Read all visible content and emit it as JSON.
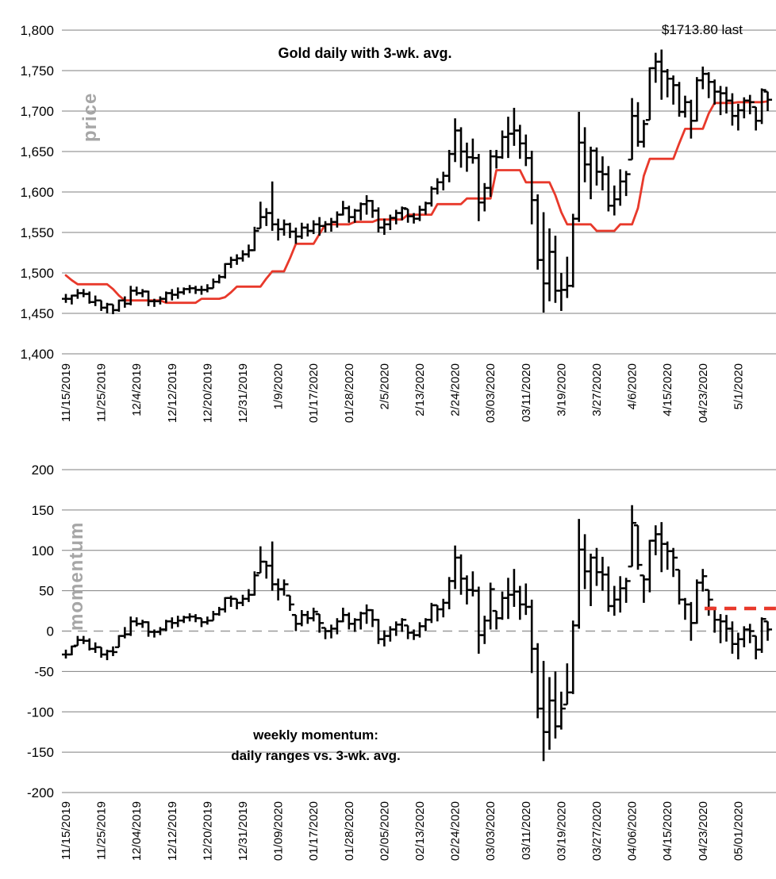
{
  "colors": {
    "background": "#ffffff",
    "grid": "#7f7f7f",
    "bars": "#000000",
    "avg_line": "#e8392b",
    "zero_dash": "#999999",
    "signal_dash": "#e8392b",
    "axis_text": "#000000",
    "side_label_text": "#a6a6a6"
  },
  "price_chart": {
    "title": "Gold daily with 3-wk. avg.",
    "side_label": "price",
    "last_label": "$1713.80 last",
    "last_value": 1713.8,
    "y_ticks": [
      "1,800",
      "1,750",
      "1,700",
      "1,650",
      "1,600",
      "1,550",
      "1,500",
      "1,450",
      "1,400"
    ],
    "x_labels": [
      "11/15/2019",
      "11/25/2019",
      "12/4/2019",
      "12/12/2019",
      "12/20/2019",
      "12/31/2019",
      "1/9/2020",
      "01/17/2020",
      "01/28/2020",
      "2/5/2020",
      "2/13/2020",
      "2/24/2020",
      "03/03/2020",
      "03/11/2020",
      "3/19/2020",
      "3/27/2020",
      "4/6/2020",
      "4/15/2020",
      "04/23/2020",
      "5/1/2020"
    ]
  },
  "momentum_chart": {
    "title_line1": "weekly momentum:",
    "title_line2": "daily ranges vs. 3-wk. avg.",
    "side_label": "momentum",
    "y_ticks": [
      "200",
      "150",
      "100",
      "50",
      "0",
      "-50",
      "-100",
      "-150",
      "-200"
    ],
    "x_labels": [
      "11/15/2019",
      "11/25/2019",
      "12/04/2019",
      "12/12/2019",
      "12/20/2019",
      "12/31/2019",
      "01/09/2020",
      "01/17/2020",
      "01/28/2020",
      "02/05/2020",
      "02/13/2020",
      "02/24/2020",
      "03/03/2020",
      "03/11/2020",
      "03/19/2020",
      "03/27/2020",
      "04/06/2020",
      "04/15/2020",
      "04/23/2020",
      "05/01/2020"
    ]
  },
  "chart_data": [
    {
      "type": "bar",
      "subtype": "daily-high-low-close-bars",
      "name": "gold-daily-price",
      "title": "Gold daily with 3-wk. avg.",
      "ylabel": "price",
      "ylim": [
        1400,
        1800
      ],
      "y_grid_step": 50,
      "grid": true,
      "x_label_every_n_days": 6,
      "annotation": "$1713.80 last",
      "days_hlc": [
        [
          1474,
          1463,
          1468
        ],
        [
          1473,
          1461,
          1472
        ],
        [
          1480,
          1468,
          1475
        ],
        [
          1480,
          1470,
          1474
        ],
        [
          1477,
          1462,
          1464
        ],
        [
          1472,
          1459,
          1466
        ],
        [
          1466,
          1453,
          1457
        ],
        [
          1463,
          1450,
          1461
        ],
        [
          1461,
          1449,
          1454
        ],
        [
          1467,
          1452,
          1466
        ],
        [
          1471,
          1457,
          1462
        ],
        [
          1484,
          1460,
          1478
        ],
        [
          1483,
          1472,
          1475
        ],
        [
          1480,
          1470,
          1477
        ],
        [
          1478,
          1459,
          1465
        ],
        [
          1468,
          1458,
          1465
        ],
        [
          1471,
          1461,
          1468
        ],
        [
          1477,
          1463,
          1475
        ],
        [
          1480,
          1466,
          1473
        ],
        [
          1482,
          1468,
          1476
        ],
        [
          1482,
          1473,
          1480
        ],
        [
          1485,
          1475,
          1481
        ],
        [
          1484,
          1474,
          1479
        ],
        [
          1484,
          1473,
          1479
        ],
        [
          1486,
          1476,
          1481
        ],
        [
          1493,
          1481,
          1489
        ],
        [
          1498,
          1487,
          1495
        ],
        [
          1512,
          1493,
          1511
        ],
        [
          1520,
          1506,
          1516
        ],
        [
          1523,
          1510,
          1518
        ],
        [
          1528,
          1514,
          1523
        ],
        [
          1535,
          1519,
          1528
        ],
        [
          1557,
          1527,
          1552
        ],
        [
          1588,
          1555,
          1569
        ],
        [
          1580,
          1558,
          1574
        ],
        [
          1613,
          1552,
          1560
        ],
        [
          1567,
          1540,
          1554
        ],
        [
          1566,
          1546,
          1560
        ],
        [
          1562,
          1543,
          1551
        ],
        [
          1556,
          1536,
          1545
        ],
        [
          1562,
          1542,
          1556
        ],
        [
          1561,
          1545,
          1552
        ],
        [
          1565,
          1548,
          1560
        ],
        [
          1569,
          1546,
          1558
        ],
        [
          1564,
          1550,
          1560
        ],
        [
          1568,
          1551,
          1563
        ],
        [
          1576,
          1556,
          1572
        ],
        [
          1589,
          1571,
          1580
        ],
        [
          1583,
          1562,
          1569
        ],
        [
          1579,
          1562,
          1577
        ],
        [
          1587,
          1565,
          1585
        ],
        [
          1596,
          1572,
          1589
        ],
        [
          1590,
          1568,
          1577
        ],
        [
          1581,
          1550,
          1556
        ],
        [
          1567,
          1547,
          1560
        ],
        [
          1572,
          1553,
          1568
        ],
        [
          1578,
          1560,
          1574
        ],
        [
          1582,
          1565,
          1580
        ],
        [
          1579,
          1562,
          1570
        ],
        [
          1574,
          1561,
          1567
        ],
        [
          1583,
          1564,
          1578
        ],
        [
          1588,
          1572,
          1586
        ],
        [
          1607,
          1582,
          1604
        ],
        [
          1617,
          1597,
          1612
        ],
        [
          1625,
          1602,
          1620
        ],
        [
          1652,
          1612,
          1647
        ],
        [
          1691,
          1637,
          1676
        ],
        [
          1680,
          1630,
          1650
        ],
        [
          1661,
          1625,
          1643
        ],
        [
          1666,
          1635,
          1642
        ],
        [
          1647,
          1564,
          1587
        ],
        [
          1611,
          1576,
          1605
        ],
        [
          1652,
          1594,
          1644
        ],
        [
          1652,
          1629,
          1643
        ],
        [
          1676,
          1641,
          1668
        ],
        [
          1693,
          1642,
          1672
        ],
        [
          1704,
          1657,
          1676
        ],
        [
          1683,
          1641,
          1660
        ],
        [
          1671,
          1632,
          1642
        ],
        [
          1651,
          1560,
          1590
        ],
        [
          1597,
          1504,
          1516
        ],
        [
          1575,
          1451,
          1487
        ],
        [
          1555,
          1465,
          1526
        ],
        [
          1546,
          1463,
          1478
        ],
        [
          1500,
          1453,
          1479
        ],
        [
          1520,
          1469,
          1484
        ],
        [
          1573,
          1482,
          1567
        ],
        [
          1699,
          1563,
          1661
        ],
        [
          1680,
          1612,
          1634
        ],
        [
          1656,
          1591,
          1651
        ],
        [
          1655,
          1608,
          1625
        ],
        [
          1644,
          1602,
          1622
        ],
        [
          1632,
          1576,
          1583
        ],
        [
          1608,
          1571,
          1591
        ],
        [
          1628,
          1583,
          1613
        ],
        [
          1626,
          1595,
          1622
        ],
        [
          1716,
          1640,
          1694
        ],
        [
          1711,
          1656,
          1662
        ],
        [
          1689,
          1655,
          1684
        ],
        [
          1754,
          1689,
          1753
        ],
        [
          1772,
          1735,
          1761
        ],
        [
          1776,
          1714,
          1749
        ],
        [
          1752,
          1717,
          1740
        ],
        [
          1744,
          1708,
          1732
        ],
        [
          1736,
          1693,
          1699
        ],
        [
          1719,
          1692,
          1711
        ],
        [
          1714,
          1666,
          1688
        ],
        [
          1742,
          1687,
          1738
        ],
        [
          1755,
          1727,
          1746
        ],
        [
          1748,
          1716,
          1736
        ],
        [
          1739,
          1708,
          1724
        ],
        [
          1731,
          1695,
          1722
        ],
        [
          1730,
          1697,
          1713
        ],
        [
          1722,
          1682,
          1694
        ],
        [
          1709,
          1676,
          1701
        ],
        [
          1717,
          1691,
          1713
        ],
        [
          1720,
          1696,
          1711
        ],
        [
          1705,
          1676,
          1688
        ],
        [
          1728,
          1684,
          1726
        ],
        [
          1724,
          1700,
          1714
        ]
      ],
      "avg_3wk": [
        1497,
        1491,
        1486,
        1486,
        1486,
        1486,
        1486,
        1486,
        1480,
        1472,
        1466,
        1466,
        1466,
        1466,
        1466,
        1466,
        1466,
        1463,
        1463,
        1463,
        1463,
        1463,
        1463,
        1468,
        1468,
        1468,
        1468,
        1470,
        1476,
        1483,
        1483,
        1483,
        1483,
        1483,
        1493,
        1502,
        1502,
        1502,
        1518,
        1536,
        1536,
        1536,
        1536,
        1548,
        1560,
        1560,
        1560,
        1560,
        1560,
        1563,
        1563,
        1563,
        1563,
        1566,
        1566,
        1566,
        1566,
        1566,
        1572,
        1572,
        1572,
        1572,
        1572,
        1585,
        1585,
        1585,
        1585,
        1585,
        1592,
        1592,
        1592,
        1592,
        1592,
        1627,
        1627,
        1627,
        1627,
        1627,
        1612,
        1612,
        1612,
        1612,
        1612,
        1596,
        1575,
        1560,
        1560,
        1560,
        1560,
        1560,
        1552,
        1552,
        1552,
        1552,
        1560,
        1560,
        1560,
        1580,
        1620,
        1641,
        1641,
        1641,
        1641,
        1641,
        1660,
        1678,
        1678,
        1678,
        1678,
        1697,
        1710,
        1710,
        1710,
        1710,
        1711,
        1711,
        1711,
        1711,
        1711,
        1712
      ]
    },
    {
      "type": "bar",
      "subtype": "daily-high-low-close-bars",
      "name": "weekly-momentum",
      "title": "weekly momentum: daily ranges vs. 3-wk. avg.",
      "ylabel": "momentum",
      "ylim": [
        -200,
        200
      ],
      "y_grid_step": 50,
      "grid": true,
      "zero_line": "dashed",
      "derived": "momentum[i] = price high/low/close[i] minus avg_3wk[i]",
      "signal_line": {
        "value": 28,
        "from_day": 108.3,
        "to_day": 120.4,
        "style": "dashed",
        "color": "#e8392b"
      }
    }
  ]
}
